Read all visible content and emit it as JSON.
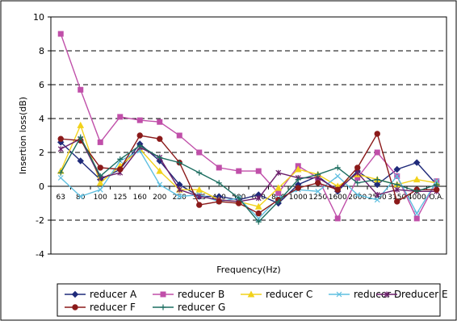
{
  "chart_data": {
    "type": "line",
    "xlabel": "Frequency(Hz)",
    "ylabel": "Insertion loss(dB)",
    "ylim": [
      -4,
      10
    ],
    "yticks": [
      -4,
      -2,
      0,
      2,
      4,
      6,
      8,
      10
    ],
    "grid": "horizontal dashed",
    "legend_position": "bottom",
    "categories": [
      "63",
      "80",
      "100",
      "125",
      "160",
      "200",
      "250",
      "315",
      "400",
      "500",
      "630",
      "800",
      "1000",
      "1250",
      "1600",
      "2000",
      "2500",
      "3150",
      "4000",
      "O.A."
    ],
    "series": [
      {
        "name": "reducer A",
        "color": "#1f2a7a",
        "marker": "diamond",
        "values": [
          2.6,
          1.5,
          0.4,
          1.0,
          2.5,
          1.5,
          0.1,
          -0.6,
          -0.6,
          -0.8,
          -0.5,
          -1.0,
          0.1,
          0.6,
          -0.3,
          0.9,
          0.1,
          1.0,
          1.4,
          0.1
        ]
      },
      {
        "name": "reducer B",
        "color": "#c04fa9",
        "marker": "square",
        "values": [
          9.0,
          5.7,
          2.6,
          4.1,
          3.9,
          3.8,
          3.0,
          2.0,
          1.1,
          0.9,
          0.9,
          -0.4,
          1.2,
          0.5,
          -1.9,
          0.5,
          2.0,
          0.6,
          -1.9,
          0.3
        ]
      },
      {
        "name": "reducer C",
        "color": "#f2d21a",
        "marker": "triangle",
        "values": [
          0.9,
          3.6,
          0.2,
          1.2,
          2.2,
          0.9,
          -0.2,
          -0.2,
          -0.8,
          -0.9,
          -1.2,
          -0.1,
          1.0,
          0.7,
          0.0,
          0.7,
          0.4,
          0.1,
          0.4,
          0.2
        ]
      },
      {
        "name": "reducer D",
        "color": "#5fbfe0",
        "marker": "x",
        "values": [
          0.5,
          -0.6,
          -0.2,
          1.5,
          2.1,
          0.1,
          -0.6,
          -0.5,
          -0.9,
          -0.7,
          -1.9,
          -0.7,
          -0.2,
          -0.3,
          0.6,
          -0.5,
          -0.8,
          0.6,
          -1.6,
          0.3
        ]
      },
      {
        "name": "reducer E",
        "color": "#6b1f6b",
        "marker": "star",
        "values": [
          2.2,
          2.8,
          0.5,
          0.8,
          2.3,
          1.7,
          -0.2,
          -0.6,
          -0.8,
          -0.9,
          -0.7,
          0.8,
          0.5,
          0.5,
          -0.2,
          0.8,
          -0.5,
          -0.2,
          -0.3,
          -0.3
        ]
      },
      {
        "name": "reducer F",
        "color": "#8b1a1a",
        "marker": "circle",
        "values": [
          2.8,
          2.7,
          1.1,
          1.0,
          3.0,
          2.8,
          1.4,
          -1.1,
          -0.9,
          -1.0,
          -1.6,
          -0.8,
          -0.1,
          0.2,
          -0.2,
          1.1,
          3.1,
          -0.9,
          -0.2,
          -0.2
        ]
      },
      {
        "name": "reducer G",
        "color": "#1c6e60",
        "marker": "plus",
        "values": [
          0.8,
          2.9,
          0.6,
          1.6,
          2.4,
          1.7,
          1.4,
          0.8,
          0.2,
          -0.7,
          -2.1,
          -0.9,
          0.4,
          0.7,
          1.1,
          0.2,
          0.4,
          0.1,
          -0.3,
          0.1
        ]
      }
    ]
  }
}
